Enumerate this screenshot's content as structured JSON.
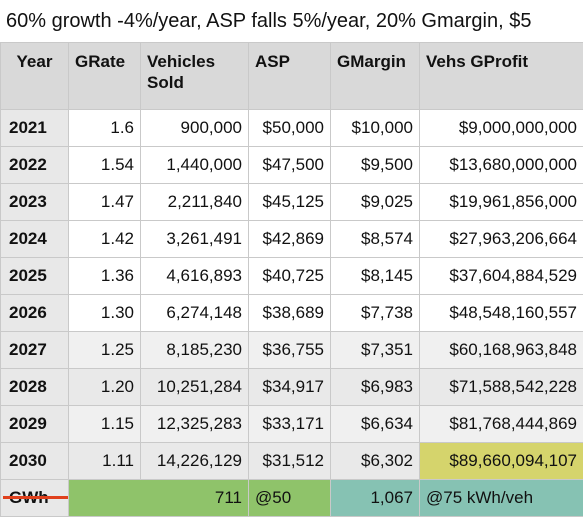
{
  "title": "60% growth -4%/year, ASP falls 5%/year, 20% Gmargin, $5",
  "headers": {
    "year": "Year",
    "grate": "GRate",
    "vehicles": "Vehicles Sold",
    "asp": "ASP",
    "gmargin": "GMargin",
    "gprofit": "Vehs GProfit"
  },
  "rows": [
    {
      "year": "2021",
      "grate": "1.6",
      "vehicles": "900,000",
      "asp": "$50,000",
      "gmargin": "$10,000",
      "gprofit": "$9,000,000,000"
    },
    {
      "year": "2022",
      "grate": "1.54",
      "vehicles": "1,440,000",
      "asp": "$47,500",
      "gmargin": "$9,500",
      "gprofit": "$13,680,000,000"
    },
    {
      "year": "2023",
      "grate": "1.47",
      "vehicles": "2,211,840",
      "asp": "$45,125",
      "gmargin": "$9,025",
      "gprofit": "$19,961,856,000"
    },
    {
      "year": "2024",
      "grate": "1.42",
      "vehicles": "3,261,491",
      "asp": "$42,869",
      "gmargin": "$8,574",
      "gprofit": "$27,963,206,664"
    },
    {
      "year": "2025",
      "grate": "1.36",
      "vehicles": "4,616,893",
      "asp": "$40,725",
      "gmargin": "$8,145",
      "gprofit": "$37,604,884,529"
    },
    {
      "year": "2026",
      "grate": "1.30",
      "vehicles": "6,274,148",
      "asp": "$38,689",
      "gmargin": "$7,738",
      "gprofit": "$48,548,160,557"
    },
    {
      "year": "2027",
      "grate": "1.25",
      "vehicles": "8,185,230",
      "asp": "$36,755",
      "gmargin": "$7,351",
      "gprofit": "$60,168,963,848"
    },
    {
      "year": "2028",
      "grate": "1.20",
      "vehicles": "10,251,284",
      "asp": "$34,917",
      "gmargin": "$6,983",
      "gprofit": "$71,588,542,228"
    },
    {
      "year": "2029",
      "grate": "1.15",
      "vehicles": "12,325,283",
      "asp": "$33,171",
      "gmargin": "$6,634",
      "gprofit": "$81,768,444,869"
    },
    {
      "year": "2030",
      "grate": "1.11",
      "vehicles": "14,226,129",
      "asp": "$31,512",
      "gmargin": "$6,302",
      "gprofit": "$89,660,094,107"
    }
  ],
  "gwh_row": {
    "label": "GWh",
    "vehicles": "711",
    "asp": "@50",
    "gmargin": "1,067",
    "gprofit": "@75 kWh/veh"
  },
  "colors": {
    "header_bg": "#d9d9d9",
    "highlight_yellow": "#d5d46c",
    "green": "#8fc36a",
    "teal": "#86c2b3",
    "red_annotation": "#e0401c"
  }
}
